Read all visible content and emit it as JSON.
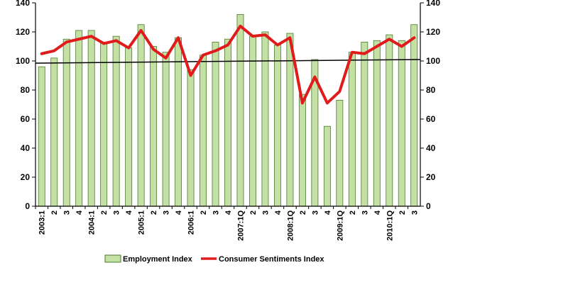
{
  "chart_data": {
    "type": "bar",
    "title": "",
    "xlabel": "",
    "ylabel": "",
    "ylim": [
      0,
      140
    ],
    "yticks": [
      0,
      20,
      40,
      60,
      80,
      100,
      120,
      140
    ],
    "grid": false,
    "legend_position": "bottom",
    "categories": [
      "2003:1",
      "2",
      "3",
      "4",
      "2004:1",
      "2",
      "3",
      "4",
      "2005:1",
      "2",
      "3",
      "4",
      "2006:1",
      "2",
      "3",
      "4",
      "2007:1Q",
      "2",
      "3",
      "4",
      "2008:1Q",
      "2",
      "3",
      "4",
      "2009:1Q",
      "2",
      "3",
      "4",
      "2010:1Q",
      "2",
      "3"
    ],
    "series": [
      {
        "name": "Employment Index",
        "kind": "bar",
        "color": "#c5e0a5",
        "edge_color": "#4a7a2a",
        "values": [
          96,
          102,
          115,
          121,
          121,
          113,
          117,
          109,
          125,
          110,
          106,
          116,
          94,
          104,
          113,
          115,
          132,
          117,
          120,
          111,
          119,
          77,
          101,
          55,
          73,
          106,
          113,
          114,
          118,
          114,
          125
        ]
      },
      {
        "name": "Consumer Sentiments Index",
        "kind": "line",
        "color": "#e01b1b",
        "values": [
          105,
          107,
          113,
          115,
          117,
          112,
          114,
          109,
          121,
          108,
          102,
          116,
          90,
          104,
          107,
          111,
          124,
          117,
          118,
          111,
          116,
          71,
          89,
          71,
          79,
          106,
          105,
          110,
          115,
          110,
          116
        ]
      }
    ],
    "trendline": {
      "color": "#000000",
      "start": 98.5,
      "end": 101
    }
  }
}
